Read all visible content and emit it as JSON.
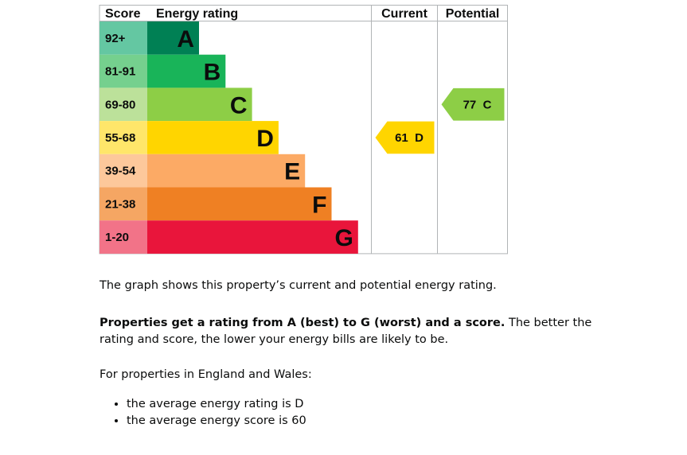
{
  "chart_data": {
    "type": "bar",
    "headers": {
      "score": "Score",
      "rating": "Energy rating",
      "current": "Current",
      "potential": "Potential"
    },
    "bands": [
      {
        "letter": "A",
        "range": "92+",
        "color": "#008054",
        "score_color": "#64c7a2"
      },
      {
        "letter": "B",
        "range": "81-91",
        "color": "#19b459",
        "score_color": "#75d08e"
      },
      {
        "letter": "C",
        "range": "69-80",
        "color": "#8dce46",
        "score_color": "#bce19a"
      },
      {
        "letter": "D",
        "range": "55-68",
        "color": "#ffd500",
        "score_color": "#ffe66a"
      },
      {
        "letter": "E",
        "range": "39-54",
        "color": "#fcaa65",
        "score_color": "#fdc89b"
      },
      {
        "letter": "F",
        "range": "21-38",
        "color": "#ef8023",
        "score_color": "#f5a663"
      },
      {
        "letter": "G",
        "range": "1-20",
        "color": "#e9153b",
        "score_color": "#f27388"
      }
    ],
    "current": {
      "score": 61,
      "letter": "D",
      "label": "61  D",
      "color": "#ffd500"
    },
    "potential": {
      "score": 77,
      "letter": "C",
      "label": "77  C",
      "color": "#8dce46"
    }
  },
  "text": {
    "para1": "The graph shows this property’s current and potential energy rating.",
    "para2_bold": "Properties get a rating from A (best) to G (worst) and a score.",
    "para2_rest": " The better the rating and score, the lower your energy bills are likely to be.",
    "para3": "For properties in England and Wales:",
    "bullets": [
      "the average energy rating is D",
      "the average energy score is 60"
    ]
  }
}
